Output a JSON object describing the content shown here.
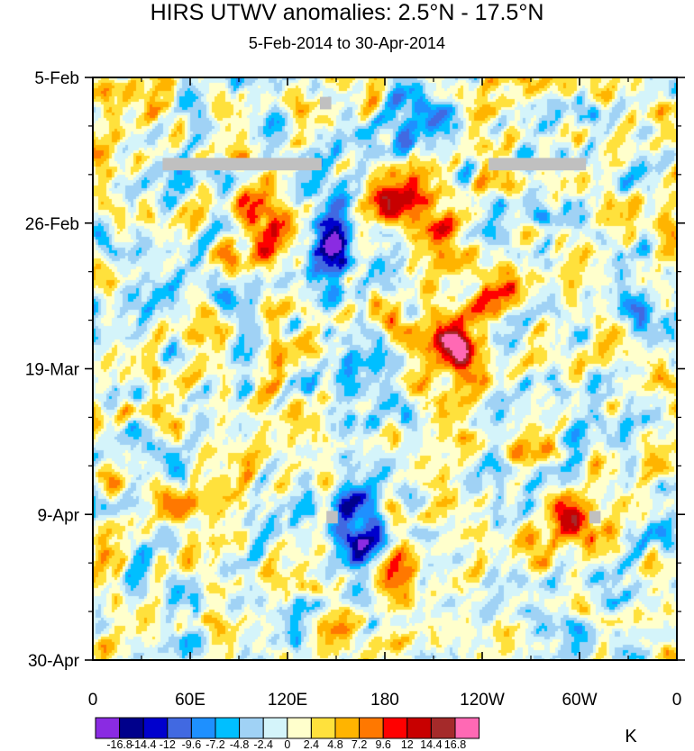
{
  "chart_data": {
    "type": "heatmap",
    "title": "HIRS UTWV anomalies: 2.5°N - 17.5°N",
    "subtitle": "5-Feb-2014 to 30-Apr-2014",
    "x_ticks": [
      "0",
      "60E",
      "120E",
      "180",
      "120W",
      "60W",
      "0"
    ],
    "x_tick_values_deg_east": [
      0,
      60,
      120,
      180,
      240,
      300,
      360
    ],
    "y_ticks": [
      "5-Feb",
      "26-Feb",
      "19-Mar",
      "9-Apr",
      "30-Apr"
    ],
    "y_tick_day_index": [
      0,
      21,
      42,
      63,
      84
    ],
    "xlim_deg_east": [
      0,
      360
    ],
    "days_span": 84,
    "units": "K",
    "colorbar_levels": [
      "-16.8",
      "-14.4",
      "-12",
      "-9.6",
      "-7.2",
      "-4.8",
      "-2.4",
      "0",
      "2.4",
      "4.8",
      "7.2",
      "9.6",
      "12",
      "14.4",
      "16.8"
    ],
    "colorbar_colors": [
      "#8a2be2",
      "#00008b",
      "#0000cd",
      "#4169e1",
      "#1e90ff",
      "#00bfff",
      "#a0d2f5",
      "#d4f4fa",
      "#ffffcc",
      "#ffe13c",
      "#ffb400",
      "#ff7800",
      "#ff0000",
      "#c80000",
      "#a52a2a",
      "#ff69b4"
    ],
    "missing_color": "#c0c0c0",
    "anomaly_features": [
      {
        "lon": 105,
        "day": 23,
        "value": 10
      },
      {
        "lon": 108,
        "day": 18,
        "value": 8
      },
      {
        "lon": 148,
        "day": 22,
        "value": -14
      },
      {
        "lon": 150,
        "day": 26,
        "value": -10
      },
      {
        "lon": 188,
        "day": 17,
        "value": 10
      },
      {
        "lon": 208,
        "day": 22,
        "value": 11
      },
      {
        "lon": 220,
        "day": 37,
        "value": 14
      },
      {
        "lon": 232,
        "day": 40,
        "value": 10
      },
      {
        "lon": 200,
        "day": 5,
        "value": -12
      },
      {
        "lon": 172,
        "day": 68,
        "value": -14
      },
      {
        "lon": 160,
        "day": 62,
        "value": -8
      },
      {
        "lon": 290,
        "day": 64,
        "value": 10
      },
      {
        "lon": 60,
        "day": 66,
        "value": 7
      },
      {
        "lon": 185,
        "day": 70,
        "value": 9
      },
      {
        "lon": 30,
        "day": 30,
        "value": -7
      },
      {
        "lon": 252,
        "day": 30,
        "value": 6
      },
      {
        "lon": 340,
        "day": 35,
        "value": -7
      }
    ],
    "missing_data": [
      {
        "lon_start": 43,
        "lon_end": 141,
        "day_start": 11.6,
        "day_end": 13.4
      },
      {
        "lon_start": 244,
        "lon_end": 304,
        "day_start": 11.6,
        "day_end": 13.4
      },
      {
        "lon_start": 140,
        "lon_end": 147,
        "day_start": 2.8,
        "day_end": 4.6
      },
      {
        "lon_start": 144,
        "lon_end": 151,
        "day_start": 62.5,
        "day_end": 64.3
      },
      {
        "lon_start": 306,
        "lon_end": 313,
        "day_start": 62.5,
        "day_end": 64.3
      }
    ]
  }
}
